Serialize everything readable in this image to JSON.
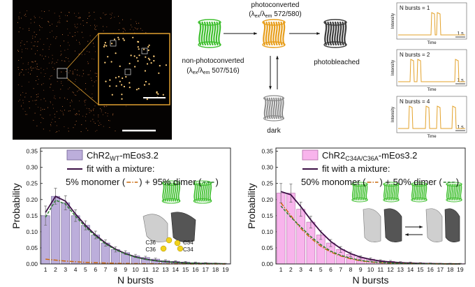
{
  "diagram": {
    "photoconverted": {
      "name": "photoconverted",
      "spec": [
        "(λ",
        "ex",
        "/λ",
        "em",
        " 572/580)"
      ]
    },
    "non_photoconverted": {
      "name": "non-photoconverted",
      "spec": [
        "(λ",
        "ex",
        "/λ",
        "em",
        " 507/516)"
      ]
    },
    "photobleached": "photobleached",
    "dark": "dark",
    "traces": [
      {
        "label": "N bursts = 1",
        "y_label": "Intensity",
        "x_label": "Time",
        "scale": "1 s"
      },
      {
        "label": "N bursts = 2",
        "y_label": "Intensity",
        "x_label": "Time",
        "scale": "1 s"
      },
      {
        "label": "N bursts = 4",
        "y_label": "Intensity",
        "x_label": "Time",
        "scale": "1 s"
      }
    ]
  },
  "chart_data": [
    {
      "type": "bar",
      "x_label": "N bursts",
      "y_label": "Probability",
      "categories": [
        "1",
        "2",
        "3",
        "4",
        "5",
        "6",
        "7",
        "8",
        "9",
        "10",
        "11",
        "12",
        "13",
        "14",
        "15",
        "16",
        "17",
        "18",
        "19"
      ],
      "ylim": [
        0,
        0.36
      ],
      "yticks": [
        {
          "value": 0,
          "label": "0.00"
        },
        {
          "value": 0.05,
          "label": "0.05"
        },
        {
          "value": 0.1,
          "label": "0.10"
        },
        {
          "value": 0.15,
          "label": "0.15"
        },
        {
          "value": 0.2,
          "label": "0.20"
        },
        {
          "value": 0.25,
          "label": "0.25"
        },
        {
          "value": 0.3,
          "label": "0.30"
        },
        {
          "value": 0.35,
          "label": "0.35"
        }
      ],
      "series": [
        {
          "name": [
            "ChR2",
            "WT",
            "-mEos3.2"
          ],
          "type": "bar",
          "color": "#bcaedb",
          "edge": "#6f5f92",
          "values": [
            0.15,
            0.21,
            0.19,
            0.15,
            0.12,
            0.09,
            0.065,
            0.045,
            0.035,
            0.025,
            0.02,
            0.015,
            0.01,
            0.008,
            0.006,
            0.004,
            0.003,
            0.002,
            0.001
          ],
          "errors": [
            0.03,
            0.025,
            0.022,
            0.018,
            0.014,
            0.012,
            0.01,
            0.008,
            0.006,
            0.005,
            0.004,
            0.003,
            0.003,
            0.002,
            0.002,
            0.002,
            0.001,
            0.001,
            0.001
          ]
        },
        {
          "name": "fit with a mixture:",
          "type": "line",
          "color": "#3b1045",
          "dash": "none",
          "values": [
            0.16,
            0.21,
            0.195,
            0.155,
            0.12,
            0.09,
            0.065,
            0.046,
            0.032,
            0.022,
            0.015,
            0.01,
            0.007,
            0.005,
            0.003,
            0.002,
            0.0015,
            0.001,
            0.0005
          ]
        },
        {
          "name": "5% monomer (",
          "type": "line",
          "color": "#c9680c",
          "dash": "6 2 1.5 2",
          "values": [
            0.015,
            0.012,
            0.009,
            0.007,
            0.005,
            0.004,
            0.003,
            0.002,
            0.0015,
            0.001,
            0.0008,
            0.0006,
            0.0004,
            0.0003,
            0.0002,
            0.0001,
            0.0001,
            0,
            0
          ]
        },
        {
          "name": ") + 95% dimer (",
          "type": "line",
          "color": "#2f7d32",
          "dash": "4 2",
          "values": [
            0.145,
            0.198,
            0.186,
            0.148,
            0.115,
            0.086,
            0.062,
            0.044,
            0.031,
            0.021,
            0.014,
            0.01,
            0.007,
            0.005,
            0.003,
            0.002,
            0.0014,
            0.001,
            0.0005
          ]
        }
      ],
      "legend_end": ")",
      "annotations": [
        "C36",
        "C34",
        "C36",
        "C34"
      ]
    },
    {
      "type": "bar",
      "x_label": "N bursts",
      "y_label": "Probability",
      "categories": [
        "1",
        "2",
        "3",
        "4",
        "5",
        "6",
        "7",
        "8",
        "9",
        "10",
        "11",
        "12",
        "13",
        "14",
        "15",
        "16",
        "17",
        "18",
        "19"
      ],
      "ylim": [
        0,
        0.36
      ],
      "yticks": [
        {
          "value": 0,
          "label": "0.00"
        },
        {
          "value": 0.05,
          "label": "0.05"
        },
        {
          "value": 0.1,
          "label": "0.10"
        },
        {
          "value": 0.15,
          "label": "0.15"
        },
        {
          "value": 0.2,
          "label": "0.20"
        },
        {
          "value": 0.25,
          "label": "0.25"
        },
        {
          "value": 0.3,
          "label": "0.30"
        },
        {
          "value": 0.35,
          "label": "0.35"
        }
      ],
      "series": [
        {
          "name": [
            "ChR2",
            "C34A/C36A",
            "-mEos3.2"
          ],
          "type": "bar",
          "color": "#f8b4ec",
          "edge": "#b06aa5",
          "values": [
            0.22,
            0.22,
            0.17,
            0.13,
            0.09,
            0.065,
            0.045,
            0.03,
            0.02,
            0.015,
            0.01,
            0.008,
            0.005,
            0.004,
            0.003,
            0.002,
            0.001,
            0.001,
            0.001
          ],
          "errors": [
            0.03,
            0.028,
            0.022,
            0.018,
            0.014,
            0.011,
            0.009,
            0.007,
            0.005,
            0.004,
            0.003,
            0.003,
            0.002,
            0.002,
            0.001,
            0.001,
            0.001,
            0.001,
            0.001
          ]
        },
        {
          "name": "fit with a mixture:",
          "type": "line",
          "color": "#3b1045",
          "dash": "none",
          "values": [
            0.225,
            0.215,
            0.178,
            0.137,
            0.1,
            0.07,
            0.048,
            0.032,
            0.021,
            0.014,
            0.009,
            0.006,
            0.004,
            0.0025,
            0.0015,
            0.001,
            0.0006,
            0.0004,
            0.0002
          ]
        },
        {
          "name": "50% monomer (",
          "type": "line",
          "color": "#c9680c",
          "dash": "6 2 1.5 2",
          "values": [
            0.19,
            0.15,
            0.11,
            0.08,
            0.055,
            0.037,
            0.025,
            0.016,
            0.01,
            0.006,
            0.004,
            0.0025,
            0.0015,
            0.001,
            0.0006,
            0.0004,
            0.0002,
            0.0001,
            0.0001
          ]
        },
        {
          "name": ") + 50% dimer (",
          "type": "line",
          "color": "#2f7d32",
          "dash": "4 2",
          "values": [
            0.18,
            0.145,
            0.115,
            0.085,
            0.06,
            0.04,
            0.027,
            0.018,
            0.011,
            0.007,
            0.0045,
            0.003,
            0.0018,
            0.001,
            0.0007,
            0.0004,
            0.0002,
            0.0001,
            0.0001
          ]
        }
      ],
      "legend_end": ")",
      "annotations": []
    }
  ]
}
